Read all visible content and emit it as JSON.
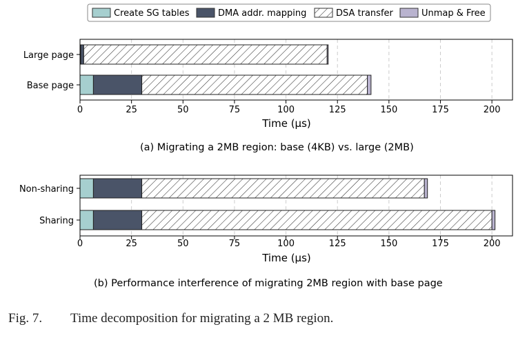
{
  "legend": [
    {
      "label": "Create SG tables",
      "color": "#a6cfcf",
      "pattern": "solid"
    },
    {
      "label": "DMA addr. mapping",
      "color": "#4a5468",
      "pattern": "solid"
    },
    {
      "label": "DSA transfer",
      "color": "#ffffff",
      "pattern": "hatch"
    },
    {
      "label": "Unmap & Free",
      "color": "#b9b3cf",
      "pattern": "solid"
    }
  ],
  "chart_data": [
    {
      "type": "bar",
      "orientation": "horizontal",
      "stacked": true,
      "categories": [
        "Large page",
        "Base page"
      ],
      "series": [
        {
          "name": "Create SG tables",
          "values": [
            0.3,
            6.5
          ]
        },
        {
          "name": "DMA addr. mapping",
          "values": [
            1.5,
            23.5
          ]
        },
        {
          "name": "DSA transfer",
          "values": [
            118.2,
            109.5
          ]
        },
        {
          "name": "Unmap & Free",
          "values": [
            0.5,
            1.8
          ]
        }
      ],
      "xlabel": "Time (µs)",
      "xlim": [
        0,
        210
      ],
      "xticks": [
        0,
        25,
        50,
        75,
        100,
        125,
        150,
        175,
        200
      ],
      "grid": "vertical dashed",
      "caption": "(a) Migrating a 2MB region: base (4KB) vs. large (2MB)"
    },
    {
      "type": "bar",
      "orientation": "horizontal",
      "stacked": true,
      "categories": [
        "Non-sharing",
        "Sharing"
      ],
      "series": [
        {
          "name": "Create SG tables",
          "values": [
            6.5,
            6.5
          ]
        },
        {
          "name": "DMA addr. mapping",
          "values": [
            23.5,
            23.5
          ]
        },
        {
          "name": "DSA transfer",
          "values": [
            137.2,
            170.0
          ]
        },
        {
          "name": "Unmap & Free",
          "values": [
            1.5,
            1.5
          ]
        }
      ],
      "xlabel": "Time (µs)",
      "xlim": [
        0,
        210
      ],
      "xticks": [
        0,
        25,
        50,
        75,
        100,
        125,
        150,
        175,
        200
      ],
      "grid": "vertical dashed",
      "caption": "(b) Performance interference of migrating 2MB region with base page"
    }
  ],
  "figure_caption": {
    "number": "Fig. 7.",
    "text": "Time decomposition for migrating a 2 MB region."
  }
}
